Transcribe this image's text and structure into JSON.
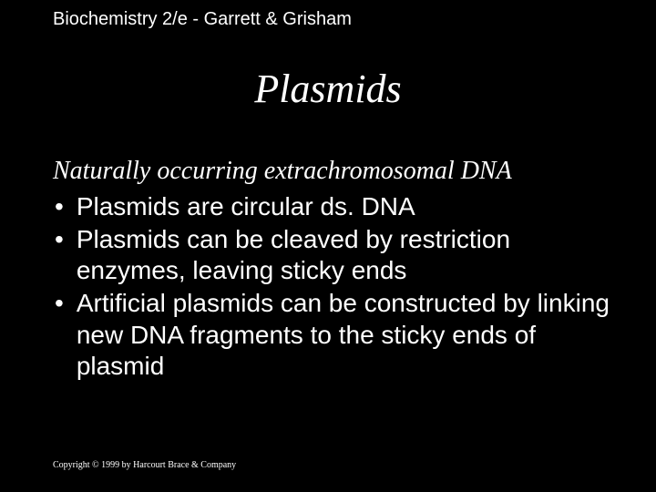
{
  "colors": {
    "background": "#000000",
    "text": "#ffffff"
  },
  "typography": {
    "header_fontsize": 20,
    "title_fontsize": 44,
    "title_style": "italic",
    "title_family": "Times New Roman",
    "subtitle_fontsize": 28,
    "subtitle_style": "italic",
    "subtitle_family": "Times New Roman",
    "body_fontsize": 28,
    "body_family": "Arial",
    "footer_fontsize": 10,
    "footer_family": "Times New Roman"
  },
  "header": "Biochemistry 2/e - Garrett & Grisham",
  "title": "Plasmids",
  "subtitle": "Naturally occurring extrachromosomal DNA",
  "bullets": [
    "Plasmids are circular ds. DNA",
    "Plasmids can be cleaved by restriction enzymes, leaving sticky ends",
    "Artificial plasmids can be constructed by linking new DNA fragments to the sticky ends of plasmid"
  ],
  "footer": "Copyright © 1999 by Harcourt Brace & Company"
}
